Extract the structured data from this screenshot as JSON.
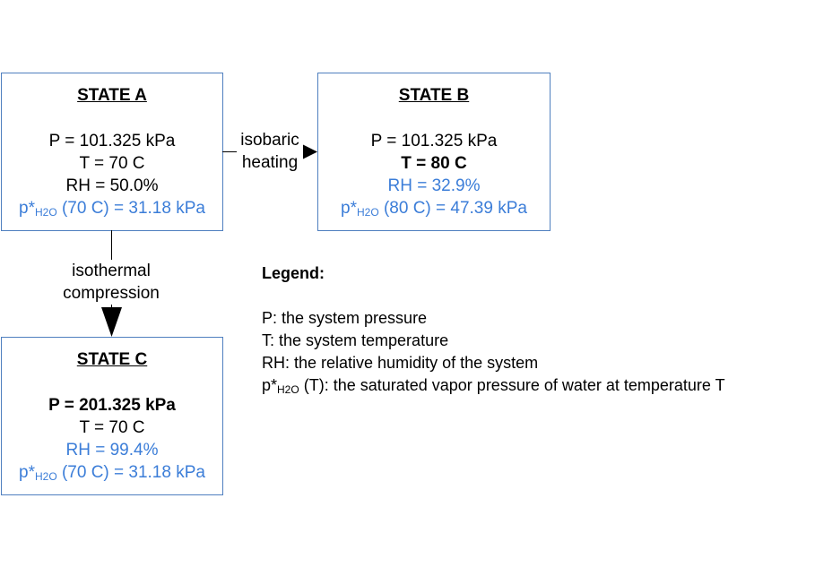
{
  "state_a": {
    "title": "STATE A",
    "p": "P = 101.325 kPa",
    "t": "T = 70 C",
    "rh": "RH = 50.0%",
    "psat_prefix": "p*",
    "psat_sub": "H2O",
    "psat_rest": "(70 C) = 31.18 kPa"
  },
  "state_b": {
    "title": "STATE B",
    "p": "P = 101.325 kPa",
    "t": "T = 80 C",
    "rh": "RH = 32.9%",
    "psat_prefix": "p*",
    "psat_sub": "H2O",
    "psat_rest": "(80 C) =  47.39 kPa"
  },
  "state_c": {
    "title": "STATE C",
    "p": "P = 201.325 kPa",
    "t": "T = 70 C",
    "rh": "RH = 99.4%",
    "psat_prefix": "p*",
    "psat_sub": "H2O",
    "psat_rest": "(70 C) = 31.18 kPa"
  },
  "arrow_ab": {
    "line1": "isobaric",
    "line2": "heating"
  },
  "arrow_ac": {
    "line1": "isothermal",
    "line2": "compression"
  },
  "legend": {
    "title": "Legend:",
    "items": [
      "P:  the system pressure",
      "T:  the system temperature",
      "RH:  the relative humidity of the system"
    ],
    "psat_prefix": "p*",
    "psat_sub": "H2O",
    "psat_rest": "(T):  the saturated vapor pressure of water at temperature T"
  },
  "colors": {
    "border": "#4f7fbf",
    "highlight": "#3b7dd8"
  }
}
